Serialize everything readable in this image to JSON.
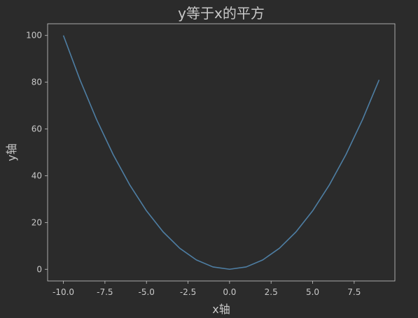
{
  "colors": {
    "background": "#2b2b2b",
    "axes": "#c8c8c8",
    "text": "#c8c8c8",
    "line": "#4e7ea3"
  },
  "chart_data": {
    "type": "line",
    "title": "y等于x的平方",
    "xlabel": "x轴",
    "ylabel": "y轴",
    "xlim": [
      -10.95,
      9.95
    ],
    "ylim": [
      -5,
      105
    ],
    "grid": false,
    "x": [
      -10,
      -9,
      -8,
      -7,
      -6,
      -5,
      -4,
      -3,
      -2,
      -1,
      0,
      1,
      2,
      3,
      4,
      5,
      6,
      7,
      8,
      9
    ],
    "series": [
      {
        "values": [
          100,
          81,
          64,
          49,
          36,
          25,
          16,
          9,
          4,
          1,
          0,
          1,
          4,
          9,
          16,
          25,
          36,
          49,
          64,
          81
        ]
      }
    ],
    "x_ticks": [
      -10.0,
      -7.5,
      -5.0,
      -2.5,
      0.0,
      2.5,
      5.0,
      7.5
    ],
    "x_tick_labels": [
      "-10.0",
      "-7.5",
      "-5.0",
      "-2.5",
      "0.0",
      "2.5",
      "5.0",
      "7.5"
    ],
    "y_ticks": [
      0,
      20,
      40,
      60,
      80,
      100
    ],
    "y_tick_labels": [
      "0",
      "20",
      "40",
      "60",
      "80",
      "100"
    ]
  }
}
